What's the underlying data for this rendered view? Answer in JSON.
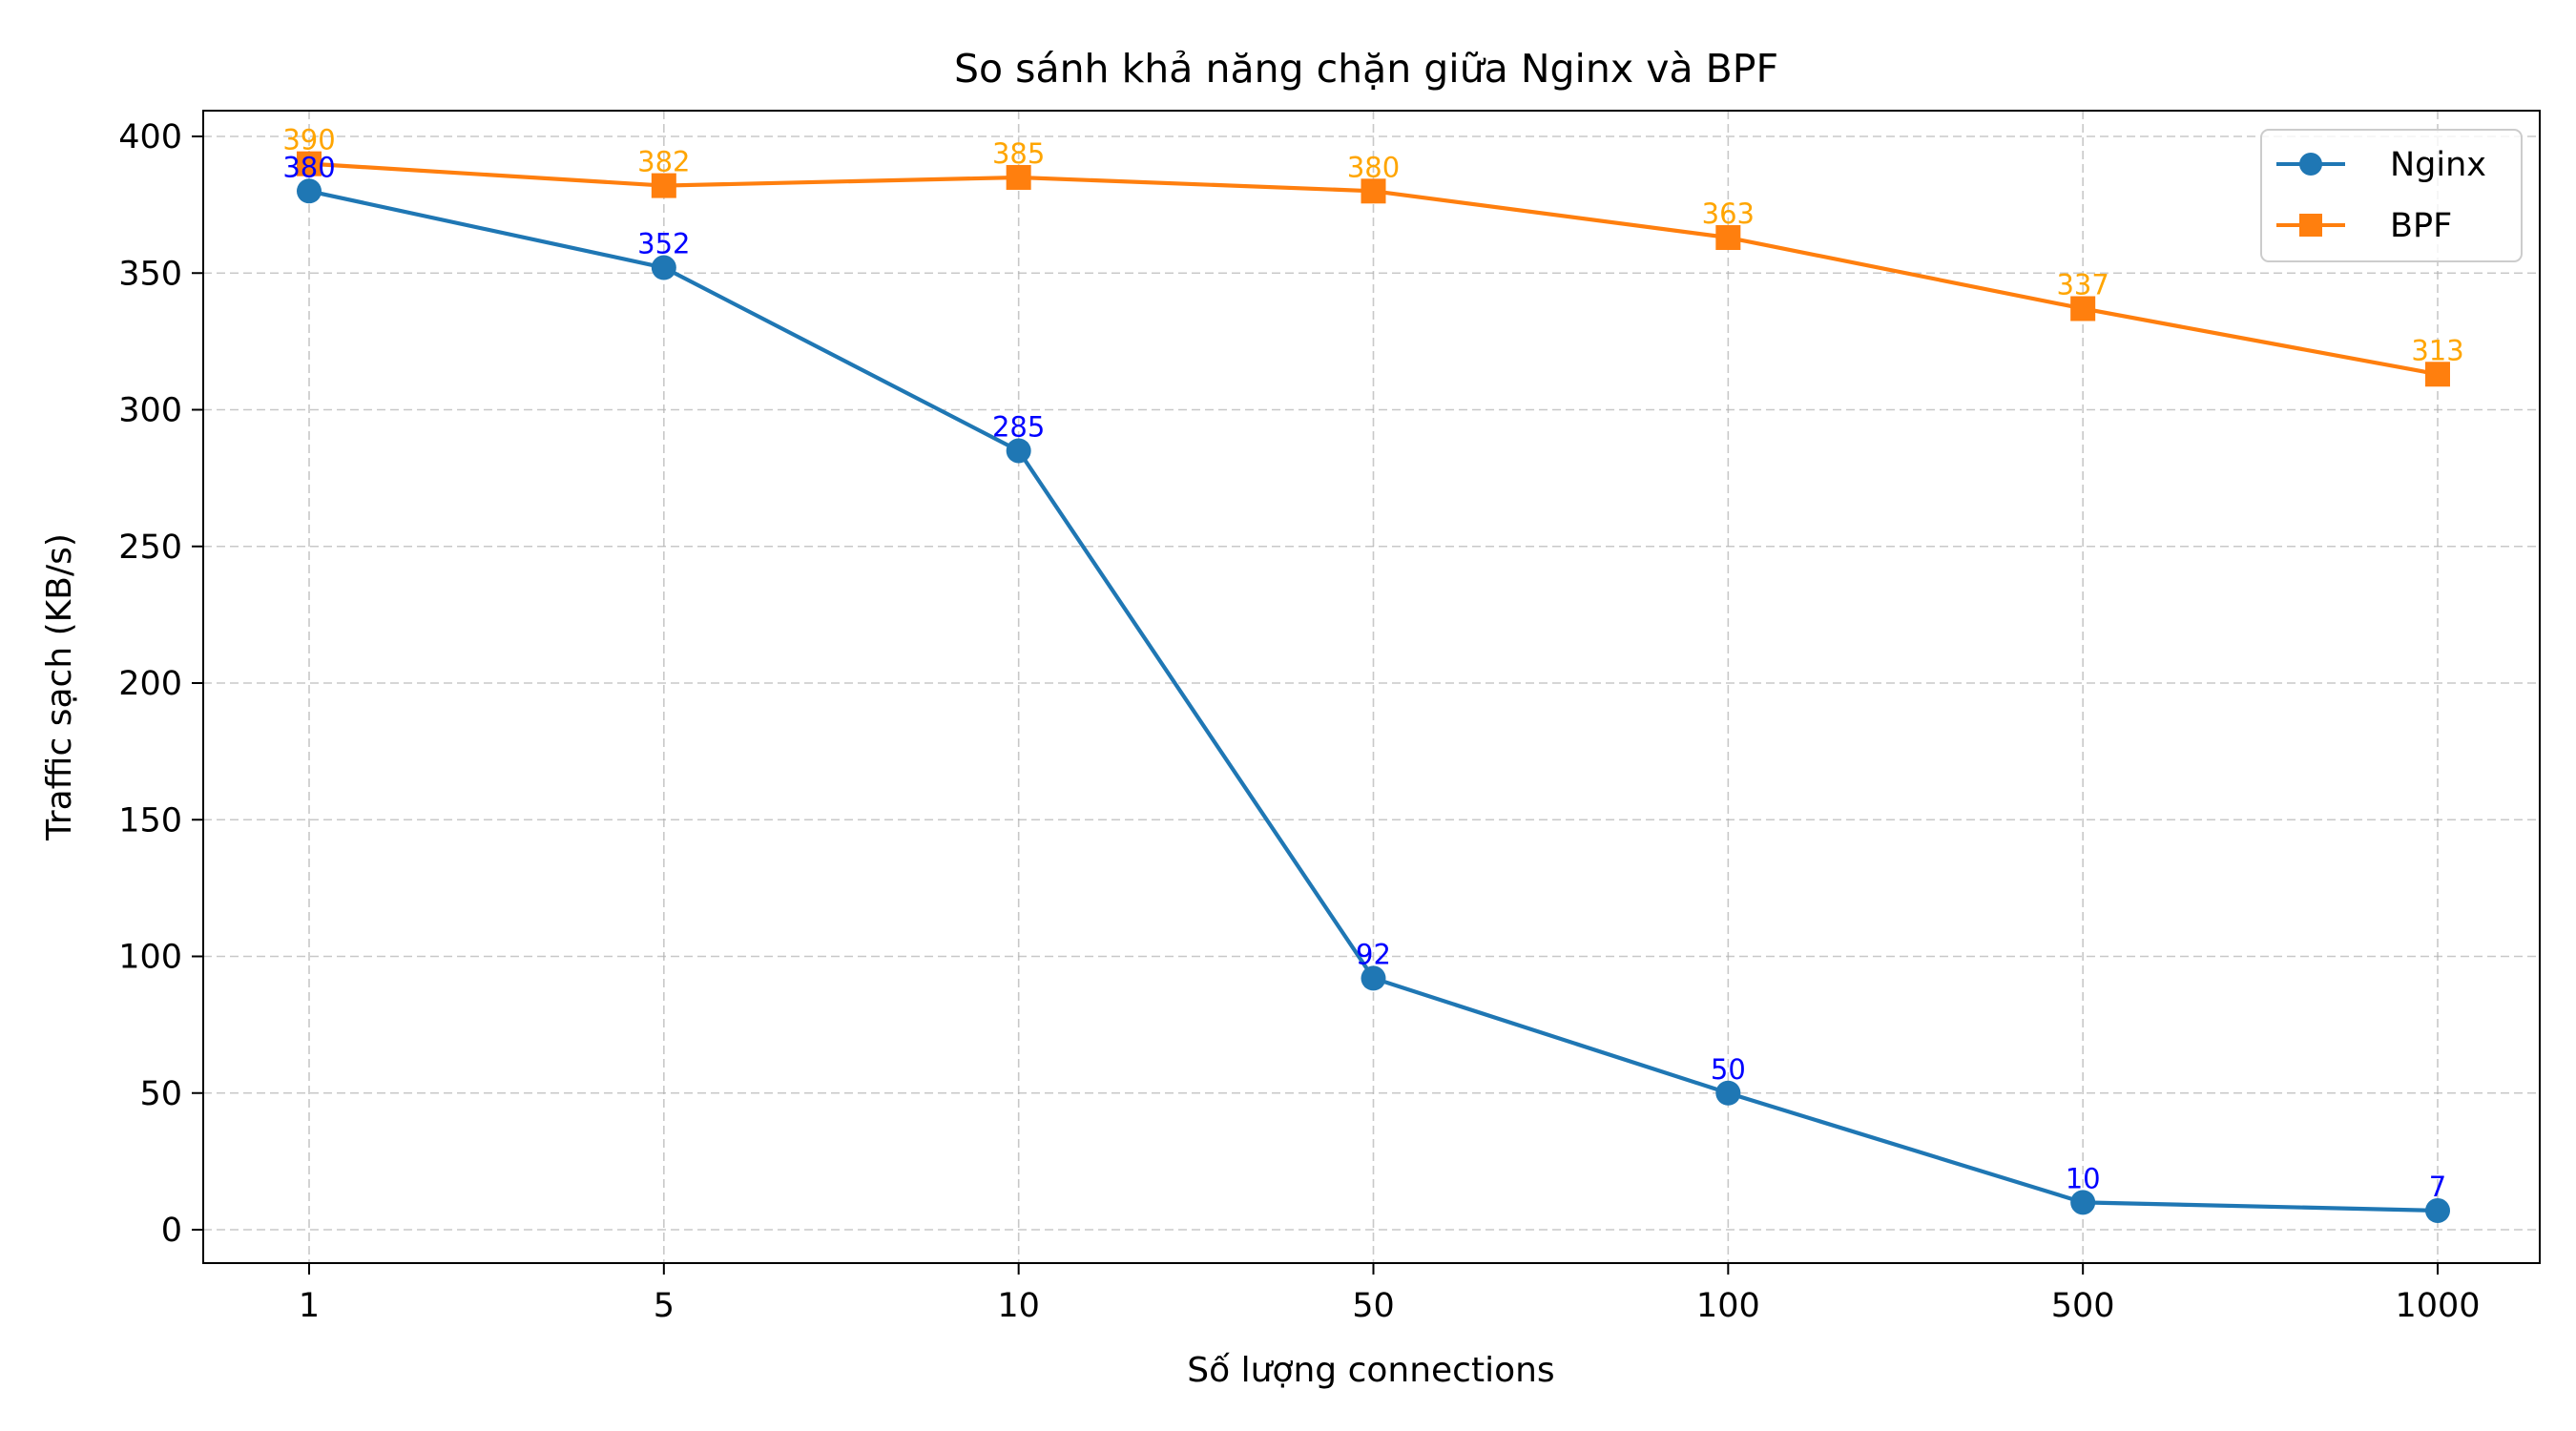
{
  "chart_data": {
    "type": "line",
    "title": "So sánh khả năng chặn giữa Nginx và BPF",
    "xlabel": "Số lượng connections",
    "ylabel": "Traffic sạch (KB/s)",
    "categories": [
      "1",
      "5",
      "10",
      "50",
      "100",
      "500",
      "1000"
    ],
    "ylim": [
      -12,
      410
    ],
    "yticks": [
      0,
      50,
      100,
      150,
      200,
      250,
      300,
      350,
      400
    ],
    "grid": true,
    "legend_position": "top-right",
    "series": [
      {
        "name": "Nginx",
        "values": [
          380,
          352,
          285,
          92,
          50,
          10,
          7
        ],
        "color": "#1f77b4",
        "label_color": "#0000ff",
        "marker": "circle"
      },
      {
        "name": "BPF",
        "values": [
          390,
          382,
          385,
          380,
          363,
          337,
          313
        ],
        "color": "#ff7f0e",
        "label_color": "#ffa500",
        "marker": "square"
      }
    ]
  }
}
